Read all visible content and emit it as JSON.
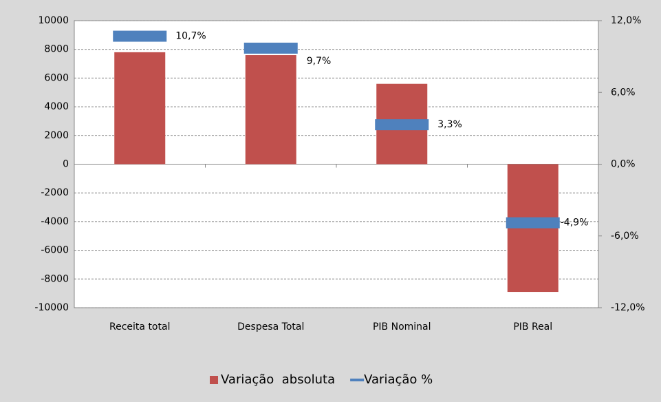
{
  "chart_data": {
    "type": "bar",
    "categories": [
      "Receita total",
      "Despesa Total",
      "PIB Nominal",
      "PIB Real"
    ],
    "series": [
      {
        "name": "Variação  absoluta",
        "color": "#c0504d",
        "type": "bar",
        "values": [
          7800,
          7600,
          5600,
          -8900
        ]
      },
      {
        "name": "Variação %",
        "color": "#4f81bd",
        "type": "marker",
        "axis": "y2",
        "values": [
          10.7,
          9.7,
          3.3,
          -4.9
        ],
        "value_labels": [
          "10,7%",
          "9,7%",
          "3,3%",
          "-4,9%"
        ]
      }
    ],
    "ylim": [
      -10000,
      10000
    ],
    "yticks": [
      -10000,
      -8000,
      -6000,
      -4000,
      -2000,
      0,
      2000,
      4000,
      6000,
      8000,
      10000
    ],
    "y2lim": [
      -12,
      12
    ],
    "y2ticks": [
      {
        "value": -12,
        "label": "-12,0%"
      },
      {
        "value": -6,
        "label": "-6,0%"
      },
      {
        "value": 0,
        "label": "0,0%"
      },
      {
        "value": 6,
        "label": "6,0%"
      },
      {
        "value": 12,
        "label": "12,0%"
      }
    ],
    "grid": true,
    "legend": "bottom"
  }
}
